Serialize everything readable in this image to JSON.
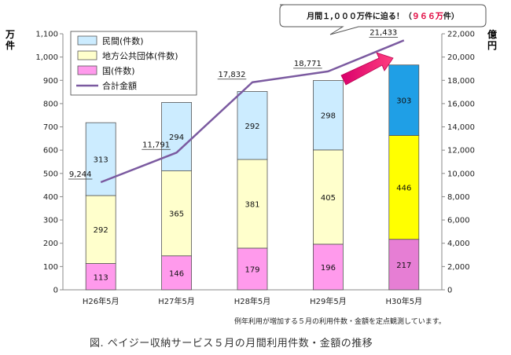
{
  "chart_data": {
    "type": "bar",
    "stacked": true,
    "categories": [
      "H26年5月",
      "H27年5月",
      "H28年5月",
      "H29年5月",
      "H30年5月"
    ],
    "series": [
      {
        "name": "国(件数)",
        "values": [
          113,
          146,
          179,
          196,
          217
        ],
        "color": "#ff9aec",
        "color_last": "#e67ed4"
      },
      {
        "name": "地方公共団体(件数)",
        "values": [
          292,
          365,
          381,
          405,
          446
        ],
        "color": "#ffffcc",
        "color_last": "#ffff00"
      },
      {
        "name": "民間(件数)",
        "values": [
          313,
          294,
          292,
          298,
          303
        ],
        "color": "#ccecff",
        "color_last": "#1f9fe6"
      }
    ],
    "line": {
      "name": "合計金額",
      "values": [
        9244,
        11791,
        17832,
        18771,
        21433
      ],
      "labels": [
        "9,244",
        "11,791",
        "17,832",
        "18,771",
        "21,433"
      ],
      "color": "#7b5aa0"
    },
    "y_left": {
      "unit": "万件",
      "min": 0,
      "max": 1100,
      "step": 100,
      "tick_labels": [
        "0",
        "100",
        "200",
        "300",
        "400",
        "500",
        "600",
        "700",
        "800",
        "900",
        "1,000",
        "1,100"
      ]
    },
    "y_right": {
      "unit": "億円",
      "min": 0,
      "max": 22000,
      "step": 2000,
      "tick_labels": [
        "0",
        "2,000",
        "4,000",
        "6,000",
        "8,000",
        "10,000",
        "12,000",
        "14,000",
        "16,000",
        "18,000",
        "20,000",
        "22,000"
      ]
    },
    "legend_order": [
      "民間(件数)",
      "地方公共団体(件数)",
      "国(件数)",
      "合計金額"
    ],
    "legend_position": "top-left",
    "grid": false
  },
  "callout": {
    "text_before": "月間１,０００万件に迫る！（",
    "highlight": "９６６万",
    "text_after": "件）"
  },
  "note": "例年利用が増加する５月の利用件数・金額を定点観測しています。",
  "caption": "図.  ペイジー収納サービス５月の月間利用件数・金額の推移"
}
